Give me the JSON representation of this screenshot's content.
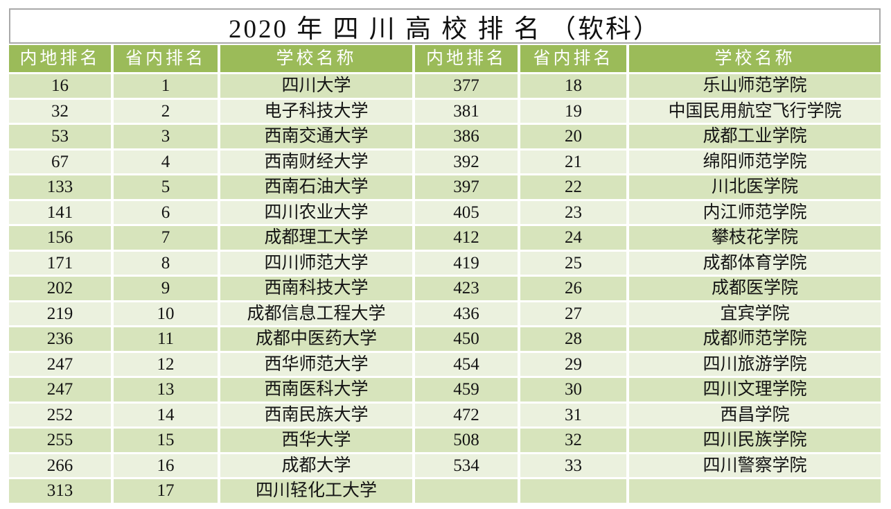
{
  "title": "2020 年 四 川 高 校 排 名 （软科）",
  "colors": {
    "header_bg": "#9BBB59",
    "header_text": "#FFFFFF",
    "row_odd_bg": "#D7E4BC",
    "row_even_bg": "#EBF1DE",
    "body_text": "#141414",
    "title_border": "#A9A9A9"
  },
  "table": {
    "headers": [
      "内地排名",
      "省内排名",
      "学校名称",
      "内地排名",
      "省内排名",
      "学校名称"
    ],
    "rows": [
      [
        "16",
        "1",
        "四川大学",
        "377",
        "18",
        "乐山师范学院"
      ],
      [
        "32",
        "2",
        "电子科技大学",
        "381",
        "19",
        "中国民用航空飞行学院"
      ],
      [
        "53",
        "3",
        "西南交通大学",
        "386",
        "20",
        "成都工业学院"
      ],
      [
        "67",
        "4",
        "西南财经大学",
        "392",
        "21",
        "绵阳师范学院"
      ],
      [
        "133",
        "5",
        "西南石油大学",
        "397",
        "22",
        "川北医学院"
      ],
      [
        "141",
        "6",
        "四川农业大学",
        "405",
        "23",
        "内江师范学院"
      ],
      [
        "156",
        "7",
        "成都理工大学",
        "412",
        "24",
        "攀枝花学院"
      ],
      [
        "171",
        "8",
        "四川师范大学",
        "419",
        "25",
        "成都体育学院"
      ],
      [
        "202",
        "9",
        "西南科技大学",
        "423",
        "26",
        "成都医学院"
      ],
      [
        "219",
        "10",
        "成都信息工程大学",
        "436",
        "27",
        "宜宾学院"
      ],
      [
        "236",
        "11",
        "成都中医药大学",
        "450",
        "28",
        "成都师范学院"
      ],
      [
        "247",
        "12",
        "西华师范大学",
        "454",
        "29",
        "四川旅游学院"
      ],
      [
        "247",
        "13",
        "西南医科大学",
        "459",
        "30",
        "四川文理学院"
      ],
      [
        "252",
        "14",
        "西南民族大学",
        "472",
        "31",
        "西昌学院"
      ],
      [
        "255",
        "15",
        "西华大学",
        "508",
        "32",
        "四川民族学院"
      ],
      [
        "266",
        "16",
        "成都大学",
        "534",
        "33",
        "四川警察学院"
      ],
      [
        "313",
        "17",
        "四川轻化工大学",
        "",
        "",
        ""
      ]
    ]
  }
}
